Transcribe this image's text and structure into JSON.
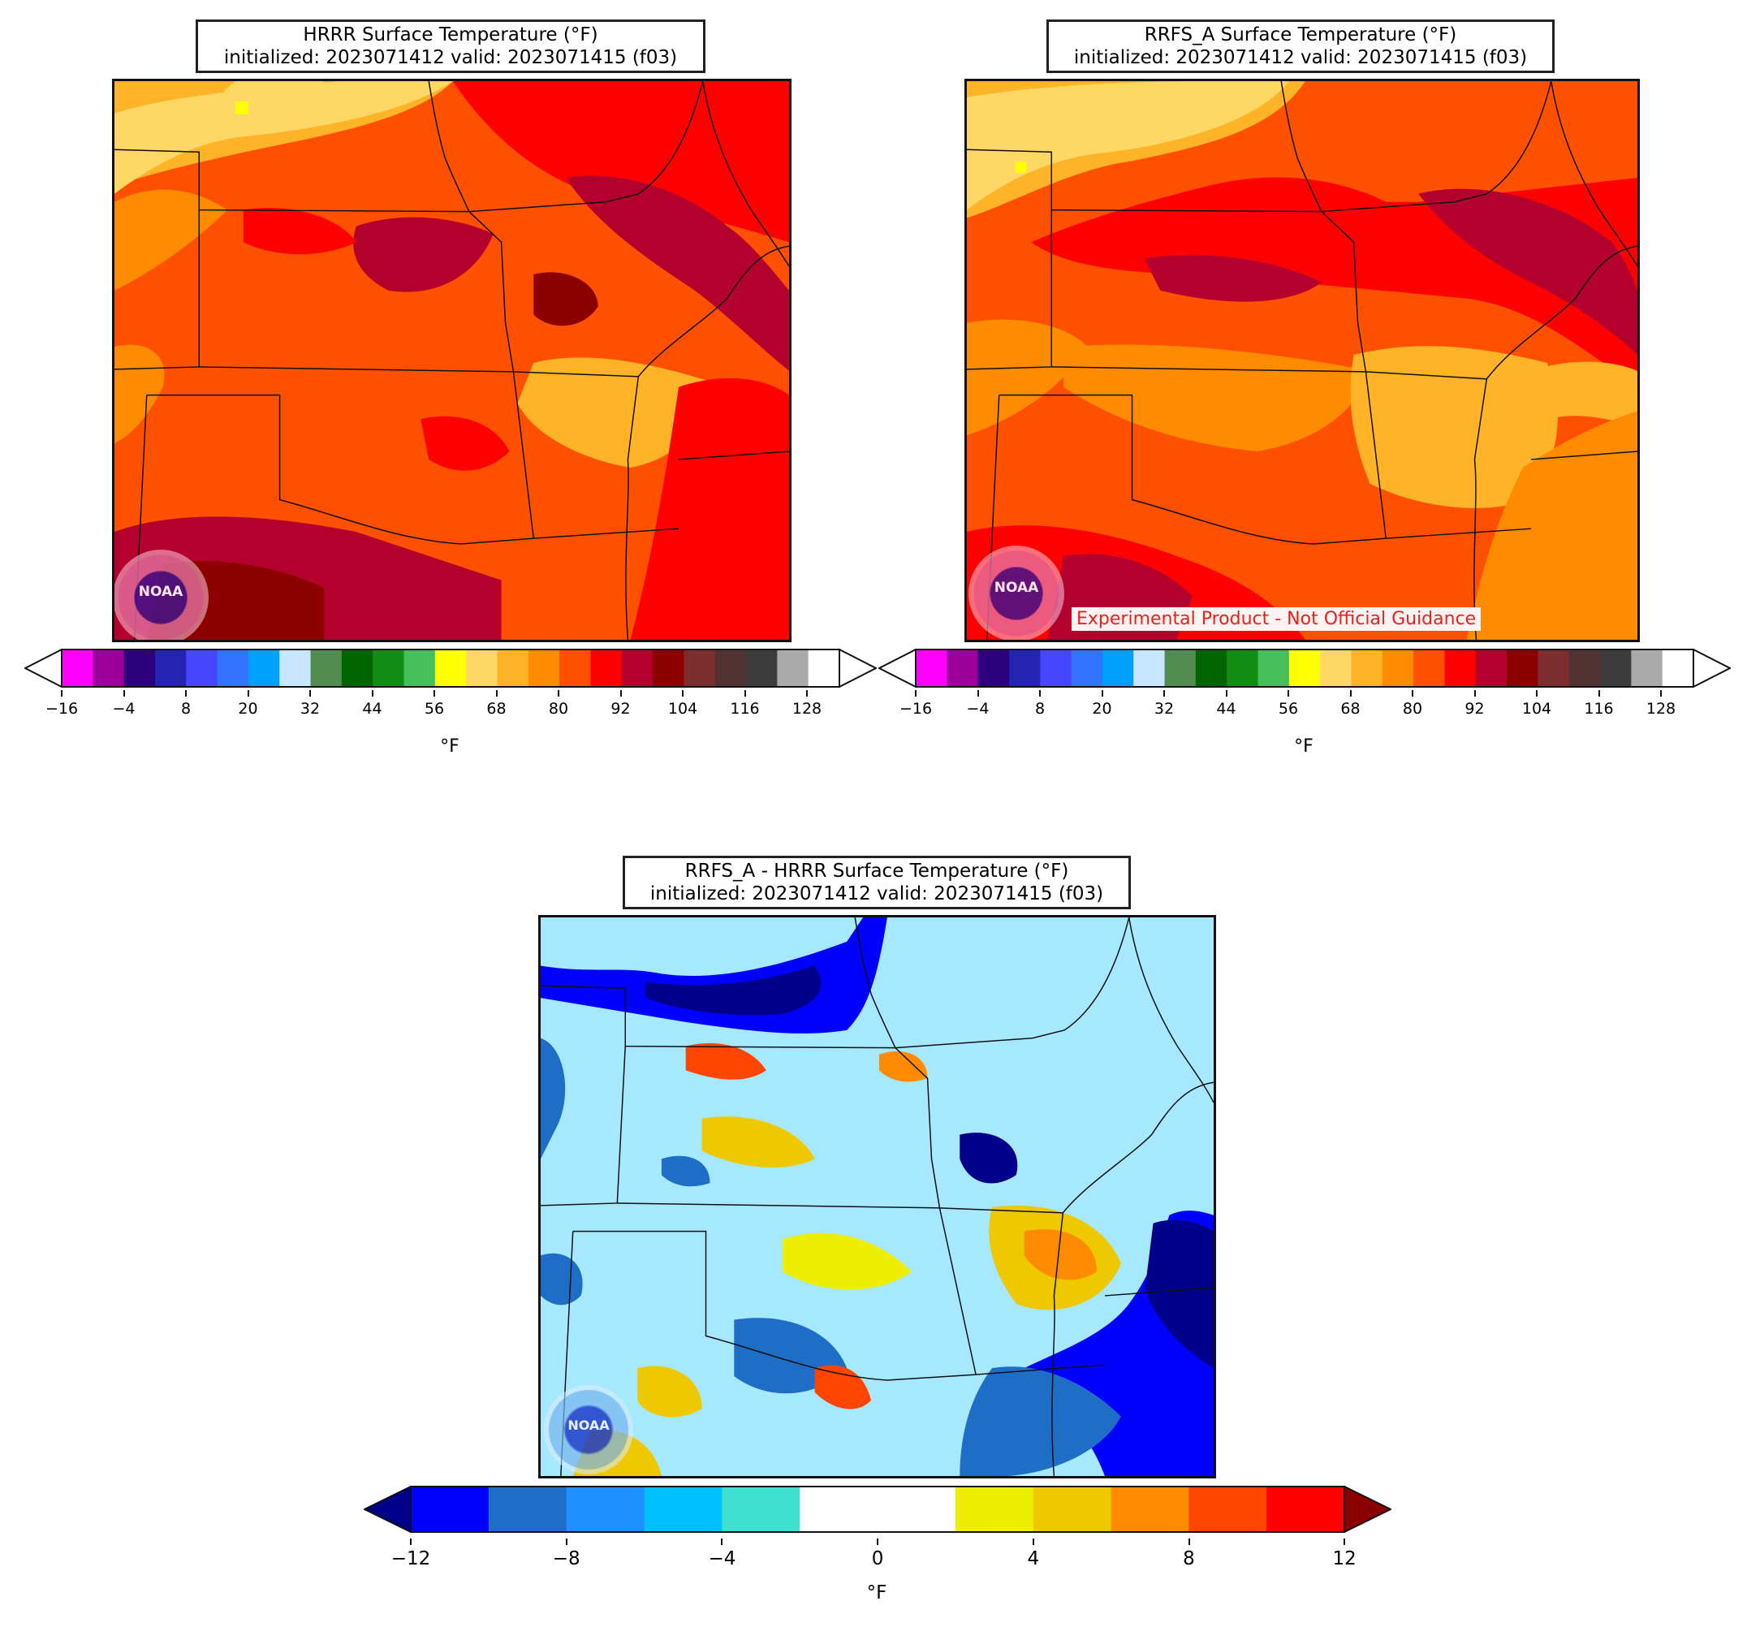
{
  "panels": {
    "hrrr": {
      "title_line1": "HRRR Surface Temperature (°F)",
      "title_line2": "initialized: 2023071412 valid: 2023071415 (f03)",
      "colorbar_ticks": [
        "−16",
        "−4",
        "8",
        "20",
        "32",
        "44",
        "56",
        "68",
        "80",
        "92",
        "104",
        "116",
        "128"
      ],
      "colorbar_unit": "°F",
      "logo_text": "NOAA"
    },
    "rrfs": {
      "title_line1": "RRFS_A Surface Temperature (°F)",
      "title_line2": "initialized: 2023071412 valid: 2023071415 (f03)",
      "colorbar_ticks": [
        "−16",
        "−4",
        "8",
        "20",
        "32",
        "44",
        "56",
        "68",
        "80",
        "92",
        "104",
        "116",
        "128"
      ],
      "colorbar_unit": "°F",
      "logo_text": "NOAA",
      "disclaimer": "Experimental Product - Not Official Guidance"
    },
    "diff": {
      "title_line1": "RRFS_A - HRRR Surface Temperature (°F)",
      "title_line2": "initialized: 2023071412 valid: 2023071415 (f03)",
      "colorbar_ticks": [
        "−12",
        "−8",
        "−4",
        "0",
        "4",
        "8",
        "12"
      ],
      "colorbar_unit": "°F",
      "logo_text": "NOAA"
    }
  },
  "temp_colormap": [
    "#ff00ff",
    "#9b009b",
    "#2d007d",
    "#2323b4",
    "#4646ff",
    "#3274ff",
    "#00a0ff",
    "#c8e6ff",
    "#508c50",
    "#006400",
    "#148c14",
    "#46be5a",
    "#ffff00",
    "#ffd764",
    "#ffb428",
    "#ff8c00",
    "#ff5000",
    "#ff0000",
    "#b4002d",
    "#8c0000",
    "#7d2d2d",
    "#503232",
    "#3c3c3c",
    "#aaaaaa",
    "#ffffff"
  ],
  "temp_extend_under": "#ffffff",
  "temp_extend_over": "#ffffff",
  "diff_colormap": [
    "#0000ff",
    "#1e6ec8",
    "#1e90ff",
    "#00c0ff",
    "#40e0d0",
    "#ffffff",
    "#ffffff",
    "#eeee00",
    "#eec900",
    "#ff8c00",
    "#ff4500",
    "#ff0000"
  ],
  "diff_extend_under": "#00008b",
  "diff_extend_over": "#8b0000"
}
